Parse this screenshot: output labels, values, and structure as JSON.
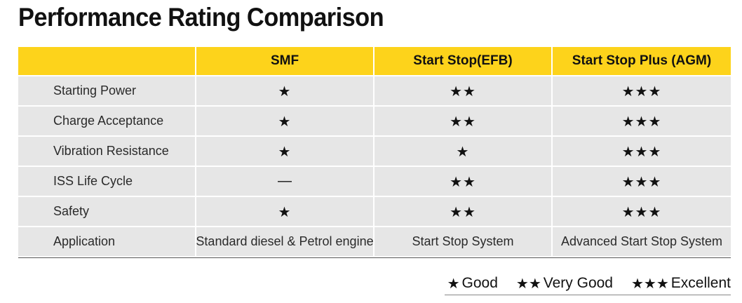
{
  "title": "Performance Rating Comparison",
  "table": {
    "headers": [
      "",
      "SMF",
      "Start Stop(EFB)",
      "Start Stop Plus (AGM)"
    ],
    "rows": [
      {
        "label": "Starting Power",
        "values": [
          "★",
          "★★",
          "★★★"
        ],
        "ratings": [
          1,
          2,
          3
        ]
      },
      {
        "label": "Charge Acceptance",
        "values": [
          "★",
          "★★",
          "★★★"
        ],
        "ratings": [
          1,
          2,
          3
        ]
      },
      {
        "label": "Vibration Resistance",
        "values": [
          "★",
          "★",
          "★★★"
        ],
        "ratings": [
          1,
          1,
          3
        ]
      },
      {
        "label": "ISS Life Cycle",
        "values": [
          "—",
          "★★",
          "★★★"
        ],
        "ratings": [
          0,
          2,
          3
        ]
      },
      {
        "label": "Safety",
        "values": [
          "★",
          "★★",
          "★★★"
        ],
        "ratings": [
          1,
          2,
          3
        ]
      },
      {
        "label": "Application",
        "values": [
          "Standard diesel & Petrol engine",
          "Start Stop System",
          "Advanced Start Stop System"
        ]
      }
    ]
  },
  "legend": [
    {
      "stars": "★",
      "label": "Good"
    },
    {
      "stars": "★★",
      "label": "Very Good"
    },
    {
      "stars": "★★★",
      "label": "Excellent"
    }
  ],
  "colors": {
    "header": "#fdd31b",
    "row": "#e6e6e6"
  }
}
